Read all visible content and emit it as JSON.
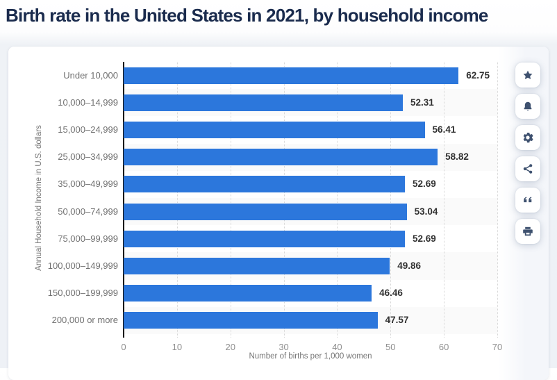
{
  "page": {
    "title": "Birth rate in the United States in 2021, by household income"
  },
  "toolbar": {
    "items": [
      "favorite",
      "notifications",
      "settings",
      "share",
      "cite",
      "print"
    ]
  },
  "chart_data": {
    "type": "bar",
    "orientation": "horizontal",
    "title": "Birth rate in the United States in 2021, by household income",
    "categories": [
      "Under 10,000",
      "10,000–14,999",
      "15,000–24,999",
      "25,000–34,999",
      "35,000–49,999",
      "50,000–74,999",
      "75,000–99,999",
      "100,000–149,999",
      "150,000–199,999",
      "200,000 or more"
    ],
    "values": [
      62.75,
      52.31,
      56.41,
      58.82,
      52.69,
      53.04,
      52.69,
      49.86,
      46.46,
      47.57
    ],
    "value_labels": [
      "62.75",
      "52.31",
      "56.41",
      "58.82",
      "52.69",
      "53.04",
      "52.69",
      "49.86",
      "46.46",
      "47.57"
    ],
    "xlabel": "Number of births per 1,000 women",
    "ylabel": "Annual Household Income in U.S. dollars",
    "xlim": [
      0,
      70
    ],
    "xticks": [
      0,
      10,
      20,
      30,
      40,
      50,
      60,
      70
    ],
    "grid": "vertical-dotted",
    "legend": "none",
    "bar_color": "#2c77dc",
    "alt_band_color": "#fafafa"
  }
}
